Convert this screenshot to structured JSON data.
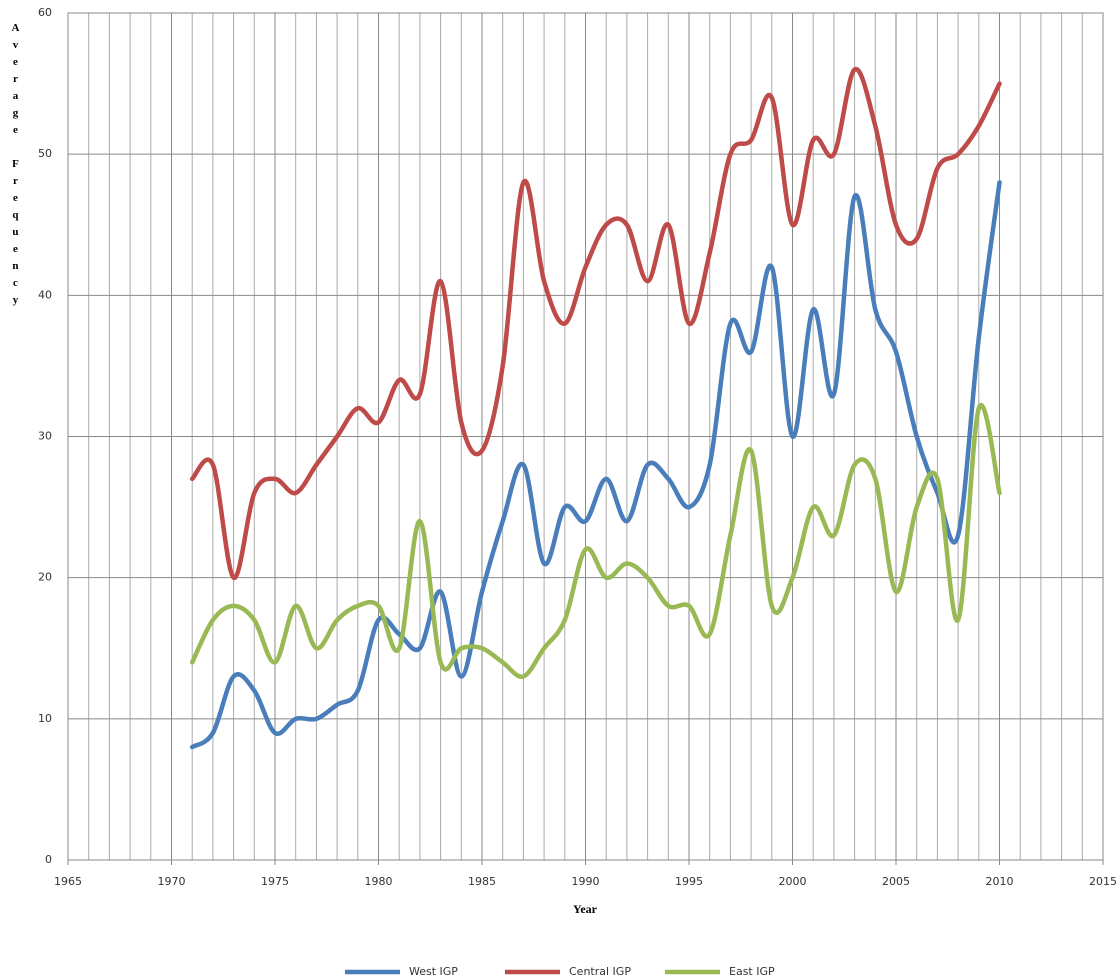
{
  "chart_data": {
    "type": "line",
    "ylabel": "Average Frequency",
    "xlabel": "Year",
    "x": [
      1971,
      1972,
      1973,
      1974,
      1975,
      1976,
      1977,
      1978,
      1979,
      1980,
      1981,
      1982,
      1983,
      1984,
      1985,
      1986,
      1987,
      1988,
      1989,
      1990,
      1991,
      1992,
      1993,
      1994,
      1995,
      1996,
      1997,
      1998,
      1999,
      2000,
      2001,
      2002,
      2003,
      2004,
      2005,
      2006,
      2007,
      2008,
      2009,
      2010
    ],
    "series": [
      {
        "name": "West IGP",
        "color": "#4a7ebb",
        "values": [
          8,
          9,
          13,
          12,
          9,
          10,
          10,
          11,
          12,
          17,
          16,
          15,
          19,
          13,
          19,
          24,
          28,
          21,
          25,
          24,
          27,
          24,
          28,
          27,
          25,
          28,
          38,
          36,
          42,
          30,
          39,
          33,
          47,
          39,
          36,
          30,
          26,
          23,
          37,
          48
        ]
      },
      {
        "name": "Central IGP",
        "color": "#be4b48",
        "values": [
          27,
          28,
          20,
          26,
          27,
          26,
          28,
          30,
          32,
          31,
          34,
          33,
          41,
          31,
          29,
          35,
          48,
          41,
          38,
          42,
          45,
          45,
          41,
          45,
          38,
          43,
          50,
          51,
          54,
          45,
          51,
          50,
          56,
          52,
          45,
          44,
          49,
          50,
          52,
          55
        ]
      },
      {
        "name": "East IGP",
        "color": "#98b954",
        "values": [
          14,
          17,
          18,
          17,
          14,
          18,
          15,
          17,
          18,
          18,
          15,
          24,
          14,
          15,
          15,
          14,
          13,
          15,
          17,
          22,
          20,
          21,
          20,
          18,
          18,
          16,
          23,
          29,
          18,
          20,
          25,
          23,
          28,
          27,
          19,
          25,
          27,
          17,
          32,
          26
        ]
      }
    ],
    "xlim": [
      1965,
      2015
    ],
    "xticks": [
      1965,
      1970,
      1975,
      1980,
      1985,
      1990,
      1995,
      2000,
      2005,
      2010,
      2015
    ],
    "ylim": [
      0,
      60
    ],
    "yticks": [
      0,
      10,
      20,
      30,
      40,
      50,
      60
    ],
    "grid": true,
    "legend": "bottom"
  }
}
